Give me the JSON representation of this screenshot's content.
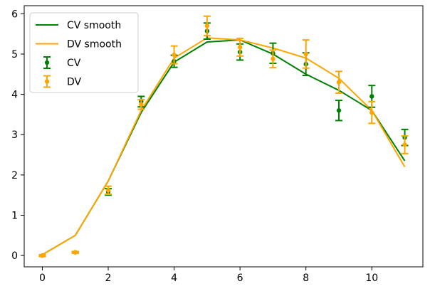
{
  "chart_data": {
    "type": "line",
    "title": "",
    "xlabel": "",
    "ylabel": "",
    "xlim": [
      -0.55,
      11.55
    ],
    "ylim": [
      -0.28,
      6.2
    ],
    "xticks": [
      0,
      2,
      4,
      6,
      8,
      10
    ],
    "yticks": [
      0,
      1,
      2,
      3,
      4,
      5,
      6
    ],
    "xtick_labels": [
      "0",
      "2",
      "4",
      "6",
      "8",
      "10"
    ],
    "ytick_labels": [
      "0",
      "1",
      "2",
      "3",
      "4",
      "5",
      "6"
    ],
    "grid": false,
    "legend_position": "top-left",
    "x": [
      0,
      1,
      2,
      3,
      4,
      5,
      6,
      7,
      8,
      9,
      10,
      11
    ],
    "lines": [
      {
        "name": "CV smooth",
        "color": "#008000",
        "values": [
          0.02,
          0.5,
          1.85,
          3.55,
          4.8,
          5.3,
          5.35,
          5.0,
          4.5,
          4.1,
          3.6,
          2.35
        ]
      },
      {
        "name": "DV smooth",
        "color": "#ffa500",
        "values": [
          0.02,
          0.5,
          1.85,
          3.6,
          4.9,
          5.4,
          5.35,
          5.15,
          4.9,
          4.4,
          3.6,
          2.2
        ]
      }
    ],
    "errorbars": [
      {
        "name": "CV",
        "color": "#008000",
        "x_offset": 0,
        "values": [
          0.0,
          0.08,
          1.58,
          3.82,
          4.82,
          5.57,
          5.05,
          5.02,
          4.75,
          3.6,
          3.95,
          2.93
        ],
        "errors": [
          0.02,
          0.02,
          0.08,
          0.13,
          0.15,
          0.2,
          0.2,
          0.25,
          0.28,
          0.25,
          0.27,
          0.2
        ]
      },
      {
        "name": "DV",
        "color": "#ffa500",
        "x_offset": 0,
        "values": [
          0.0,
          0.08,
          1.62,
          3.75,
          4.98,
          5.7,
          5.17,
          4.88,
          5.0,
          4.3,
          3.55,
          2.75
        ],
        "errors": [
          0.02,
          0.02,
          0.1,
          0.12,
          0.22,
          0.24,
          0.22,
          0.22,
          0.35,
          0.27,
          0.27,
          0.22
        ]
      }
    ]
  }
}
